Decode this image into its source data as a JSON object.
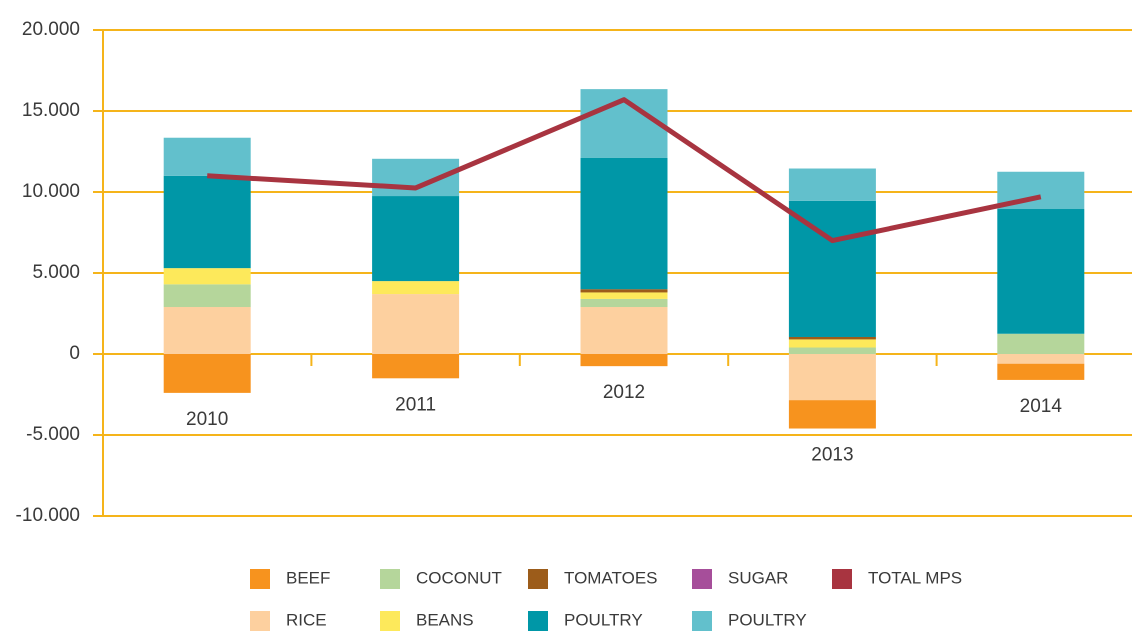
{
  "chart_data": {
    "type": "bar",
    "categories": [
      "2010",
      "2011",
      "2012",
      "2013",
      "2014"
    ],
    "series": [
      {
        "name": "BEEF",
        "color": "#f7931e",
        "values": [
          -2400,
          -1500,
          -750,
          -1750,
          -1000
        ]
      },
      {
        "name": "RICE",
        "color": "#fdd09f",
        "values": [
          2900,
          3700,
          2900,
          -2850,
          -600
        ]
      },
      {
        "name": "COCONUT",
        "color": "#b5d69b",
        "values": [
          1400,
          0,
          500,
          400,
          1250
        ]
      },
      {
        "name": "BEANS",
        "color": "#fde95b",
        "values": [
          1000,
          800,
          400,
          500,
          0
        ]
      },
      {
        "name": "TOMATOES",
        "color": "#9c5c1a",
        "values": [
          0,
          0,
          200,
          150,
          0
        ]
      },
      {
        "name": "POULTRY",
        "color": "#0097a7",
        "values": [
          5700,
          5250,
          8100,
          8400,
          7700
        ]
      },
      {
        "name": "SUGAR",
        "color": "#a64e9a",
        "values": [
          0,
          0,
          0,
          0,
          0
        ]
      },
      {
        "name": "POULTRY",
        "color": "#62c0cc",
        "values": [
          2350,
          2300,
          4250,
          2000,
          2300
        ]
      },
      {
        "name": "TOTAL MPS",
        "color": "#a83440",
        "type": "line",
        "values": [
          11000,
          10250,
          15700,
          7000,
          9700
        ]
      }
    ],
    "ylim": [
      -10000,
      20000
    ],
    "yticks": [
      {
        "value": -10000,
        "label": "-10.000"
      },
      {
        "value": -5000,
        "label": "-5.000"
      },
      0,
      {
        "value": 5000,
        "label": "5.000"
      },
      {
        "value": 10000,
        "label": "10.000"
      },
      {
        "value": 15000,
        "label": "15.000"
      },
      {
        "value": 20000,
        "label": "20.000"
      }
    ],
    "grid": true
  }
}
